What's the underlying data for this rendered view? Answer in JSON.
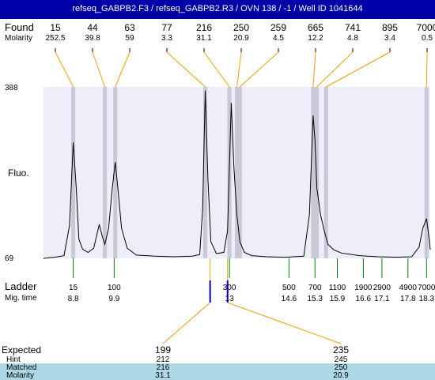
{
  "title": "refseq_GABPB2.F3 / refseq_GABPB2.R3 / OVN 138 / -1 / Well ID 1041644",
  "labels": {
    "found": "Found",
    "molarity": "Molarity",
    "fluo": "Fluo.",
    "ladder": "Ladder",
    "mig_time": "Mig. time",
    "expected": "Expected",
    "hint": "Hint",
    "matched": "Matched",
    "molarity_row": "Molarity"
  },
  "colors": {
    "title_bar": "#0000a8",
    "plot_bg": "#eeeefa",
    "band": "#c8c8d6",
    "orange": "#f0a000",
    "green": "#008000",
    "blue": "#0000cc",
    "highlight": "#add8e6"
  },
  "chart_data": {
    "type": "line",
    "y_axis": {
      "min": 69,
      "max": 388,
      "min_label": "69",
      "max_label": "388"
    },
    "x_axis_mig_time": {
      "min": 8.0,
      "max": 18.4
    },
    "found_peaks": [
      {
        "size": "15",
        "molarity": "252.5",
        "mig_time": 8.8
      },
      {
        "size": "44",
        "molarity": "39.8",
        "mig_time": 9.65
      },
      {
        "size": "63",
        "molarity": "59",
        "mig_time": 9.93
      },
      {
        "size": "77",
        "molarity": "3.3",
        "mig_time": 12.35
      },
      {
        "size": "216",
        "molarity": "31.1",
        "mig_time": 13.0
      },
      {
        "size": "250",
        "molarity": "20.9",
        "mig_time": 13.2
      },
      {
        "size": "259",
        "molarity": "4.5",
        "mig_time": 13.28
      },
      {
        "size": "665",
        "molarity": "12.2",
        "mig_time": 15.25
      },
      {
        "size": "741",
        "molarity": "4.8",
        "mig_time": 15.35
      },
      {
        "size": "895",
        "molarity": "3.4",
        "mig_time": 15.6
      },
      {
        "size": "7000",
        "molarity": "0.5",
        "mig_time": 18.3
      }
    ],
    "ladder": [
      {
        "size": "15",
        "mig_time": "8.8"
      },
      {
        "size": "100",
        "mig_time": "9.9"
      },
      {
        "size": "300",
        "mig_time": "13"
      },
      {
        "size": "500",
        "mig_time": "14.6"
      },
      {
        "size": "700",
        "mig_time": "15.3"
      },
      {
        "size": "1100",
        "mig_time": "15.9"
      },
      {
        "size": "1900",
        "mig_time": "16.6"
      },
      {
        "size": "2900",
        "mig_time": "17.1"
      },
      {
        "size": "4900",
        "mig_time": "17.8"
      },
      {
        "size": "7000",
        "mig_time": "18.3"
      }
    ],
    "trace": [
      [
        8.0,
        69
      ],
      [
        8.3,
        71
      ],
      [
        8.55,
        74
      ],
      [
        8.7,
        130
      ],
      [
        8.8,
        285
      ],
      [
        8.88,
        200
      ],
      [
        8.95,
        105
      ],
      [
        9.05,
        86
      ],
      [
        9.2,
        80
      ],
      [
        9.35,
        88
      ],
      [
        9.5,
        132
      ],
      [
        9.58,
        110
      ],
      [
        9.65,
        95
      ],
      [
        9.75,
        125
      ],
      [
        9.85,
        200
      ],
      [
        9.93,
        248
      ],
      [
        10.0,
        200
      ],
      [
        10.1,
        125
      ],
      [
        10.25,
        88
      ],
      [
        10.5,
        75
      ],
      [
        11.0,
        73
      ],
      [
        11.5,
        72
      ],
      [
        12.0,
        73
      ],
      [
        12.2,
        76
      ],
      [
        12.28,
        160
      ],
      [
        12.35,
        381
      ],
      [
        12.42,
        220
      ],
      [
        12.5,
        100
      ],
      [
        12.65,
        78
      ],
      [
        12.85,
        80
      ],
      [
        12.95,
        120
      ],
      [
        13.05,
        358
      ],
      [
        13.12,
        240
      ],
      [
        13.2,
        150
      ],
      [
        13.28,
        100
      ],
      [
        13.4,
        80
      ],
      [
        13.6,
        74
      ],
      [
        14.0,
        72
      ],
      [
        14.5,
        71
      ],
      [
        15.0,
        73
      ],
      [
        15.15,
        150
      ],
      [
        15.25,
        335
      ],
      [
        15.3,
        290
      ],
      [
        15.35,
        200
      ],
      [
        15.45,
        150
      ],
      [
        15.55,
        120
      ],
      [
        15.65,
        95
      ],
      [
        15.8,
        85
      ],
      [
        16.0,
        79
      ],
      [
        16.5,
        74
      ],
      [
        17.0,
        72
      ],
      [
        17.5,
        71
      ],
      [
        17.9,
        72
      ],
      [
        18.1,
        90
      ],
      [
        18.2,
        125
      ],
      [
        18.3,
        143
      ],
      [
        18.38,
        100
      ],
      [
        18.4,
        85
      ]
    ],
    "expected_matches": [
      {
        "expected": "199",
        "hint": "212",
        "matched": "216",
        "molarity": "31.1",
        "ladder_mig_time": 12.48
      },
      {
        "expected": "235",
        "hint": "245",
        "matched": "250",
        "molarity": "20.9",
        "ladder_mig_time": 12.95
      }
    ]
  }
}
